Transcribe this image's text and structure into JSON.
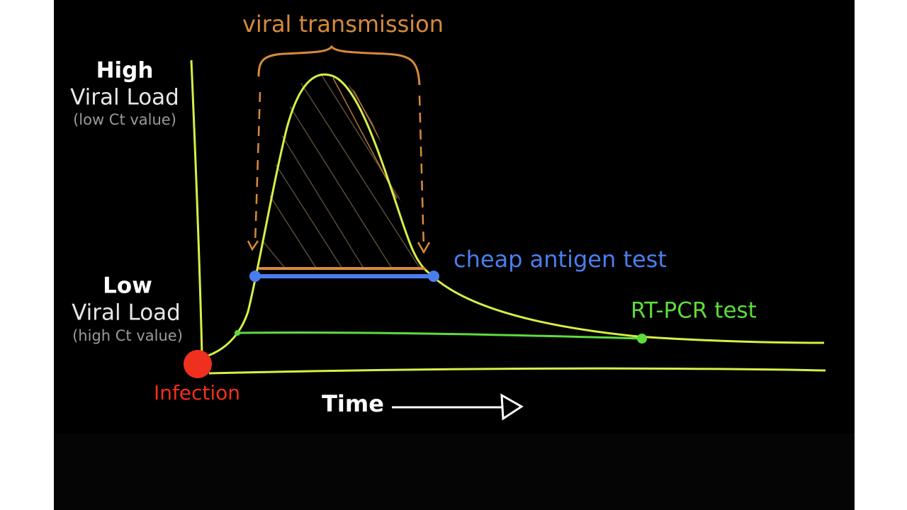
{
  "annotations": {
    "transmission": "viral transmission",
    "high_label": "High",
    "high_sub": "Viral Load",
    "high_note": "(low Ct value)",
    "low_label": "Low",
    "low_sub": "Viral Load",
    "low_note": "(high Ct value)",
    "antigen": "cheap antigen test",
    "pcr": "RT-PCR test",
    "infection": "Infection",
    "time": "Time"
  }
}
